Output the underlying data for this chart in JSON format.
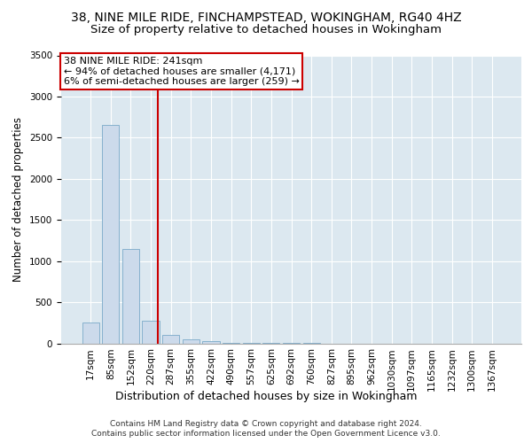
{
  "title": "38, NINE MILE RIDE, FINCHAMPSTEAD, WOKINGHAM, RG40 4HZ",
  "subtitle": "Size of property relative to detached houses in Wokingham",
  "xlabel": "Distribution of detached houses by size in Wokingham",
  "ylabel": "Number of detached properties",
  "footer_line1": "Contains HM Land Registry data © Crown copyright and database right 2024.",
  "footer_line2": "Contains public sector information licensed under the Open Government Licence v3.0.",
  "bar_labels": [
    "17sqm",
    "85sqm",
    "152sqm",
    "220sqm",
    "287sqm",
    "355sqm",
    "422sqm",
    "490sqm",
    "557sqm",
    "625sqm",
    "692sqm",
    "760sqm",
    "827sqm",
    "895sqm",
    "962sqm",
    "1030sqm",
    "1097sqm",
    "1165sqm",
    "1232sqm",
    "1300sqm",
    "1367sqm"
  ],
  "bar_values": [
    250,
    2650,
    1150,
    270,
    100,
    50,
    30,
    10,
    5,
    2,
    1,
    1,
    0,
    0,
    0,
    0,
    0,
    0,
    0,
    0,
    0
  ],
  "bar_color": "#ccdaeb",
  "bar_edge_color": "#7aaac8",
  "vline_pos": 3.35,
  "vline_color": "#cc0000",
  "annotation_text": "38 NINE MILE RIDE: 241sqm\n← 94% of detached houses are smaller (4,171)\n6% of semi-detached houses are larger (259) →",
  "annotation_box_color": "#cc0000",
  "ylim": [
    0,
    3500
  ],
  "yticks": [
    0,
    500,
    1000,
    1500,
    2000,
    2500,
    3000,
    3500
  ],
  "background_color": "#dce8f0",
  "title_fontsize": 10,
  "subtitle_fontsize": 9.5,
  "ylabel_fontsize": 8.5,
  "xlabel_fontsize": 9,
  "tick_fontsize": 7.5,
  "annotation_fontsize": 8,
  "footer_fontsize": 6.5
}
